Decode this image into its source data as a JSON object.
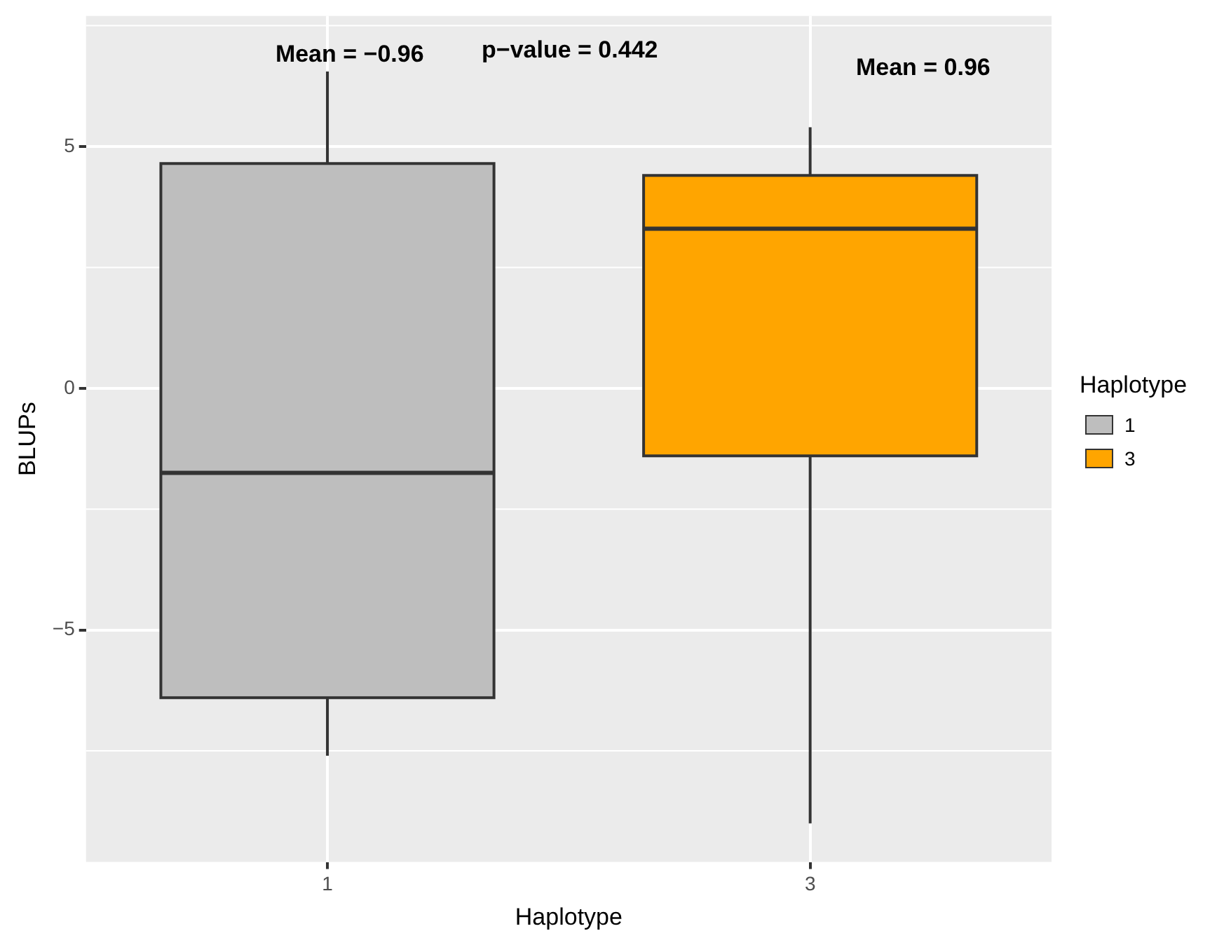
{
  "chart_data": {
    "type": "box",
    "xlabel": "Haplotype",
    "ylabel": "BLUPs",
    "legend_title": "Haplotype",
    "legend": "right",
    "grid": true,
    "categories": [
      "1",
      "3"
    ],
    "series": [
      {
        "name": "1",
        "color": "#bebebe",
        "boxes": [
          {
            "low": -7.6,
            "q1": -6.4,
            "median": -1.75,
            "q3": 4.65,
            "high": 6.55
          },
          null
        ]
      },
      {
        "name": "3",
        "color": "#ffa500",
        "boxes": [
          null,
          {
            "low": -9.0,
            "q1": -1.4,
            "median": 3.3,
            "q3": 4.4,
            "high": 5.4
          }
        ]
      }
    ],
    "ylim": [
      -9.8,
      7.7
    ],
    "yticks": [
      -5,
      0,
      5
    ],
    "annotations": [
      "Mean = −0.96",
      "p−value = 0.442",
      "Mean = 0.96"
    ]
  }
}
